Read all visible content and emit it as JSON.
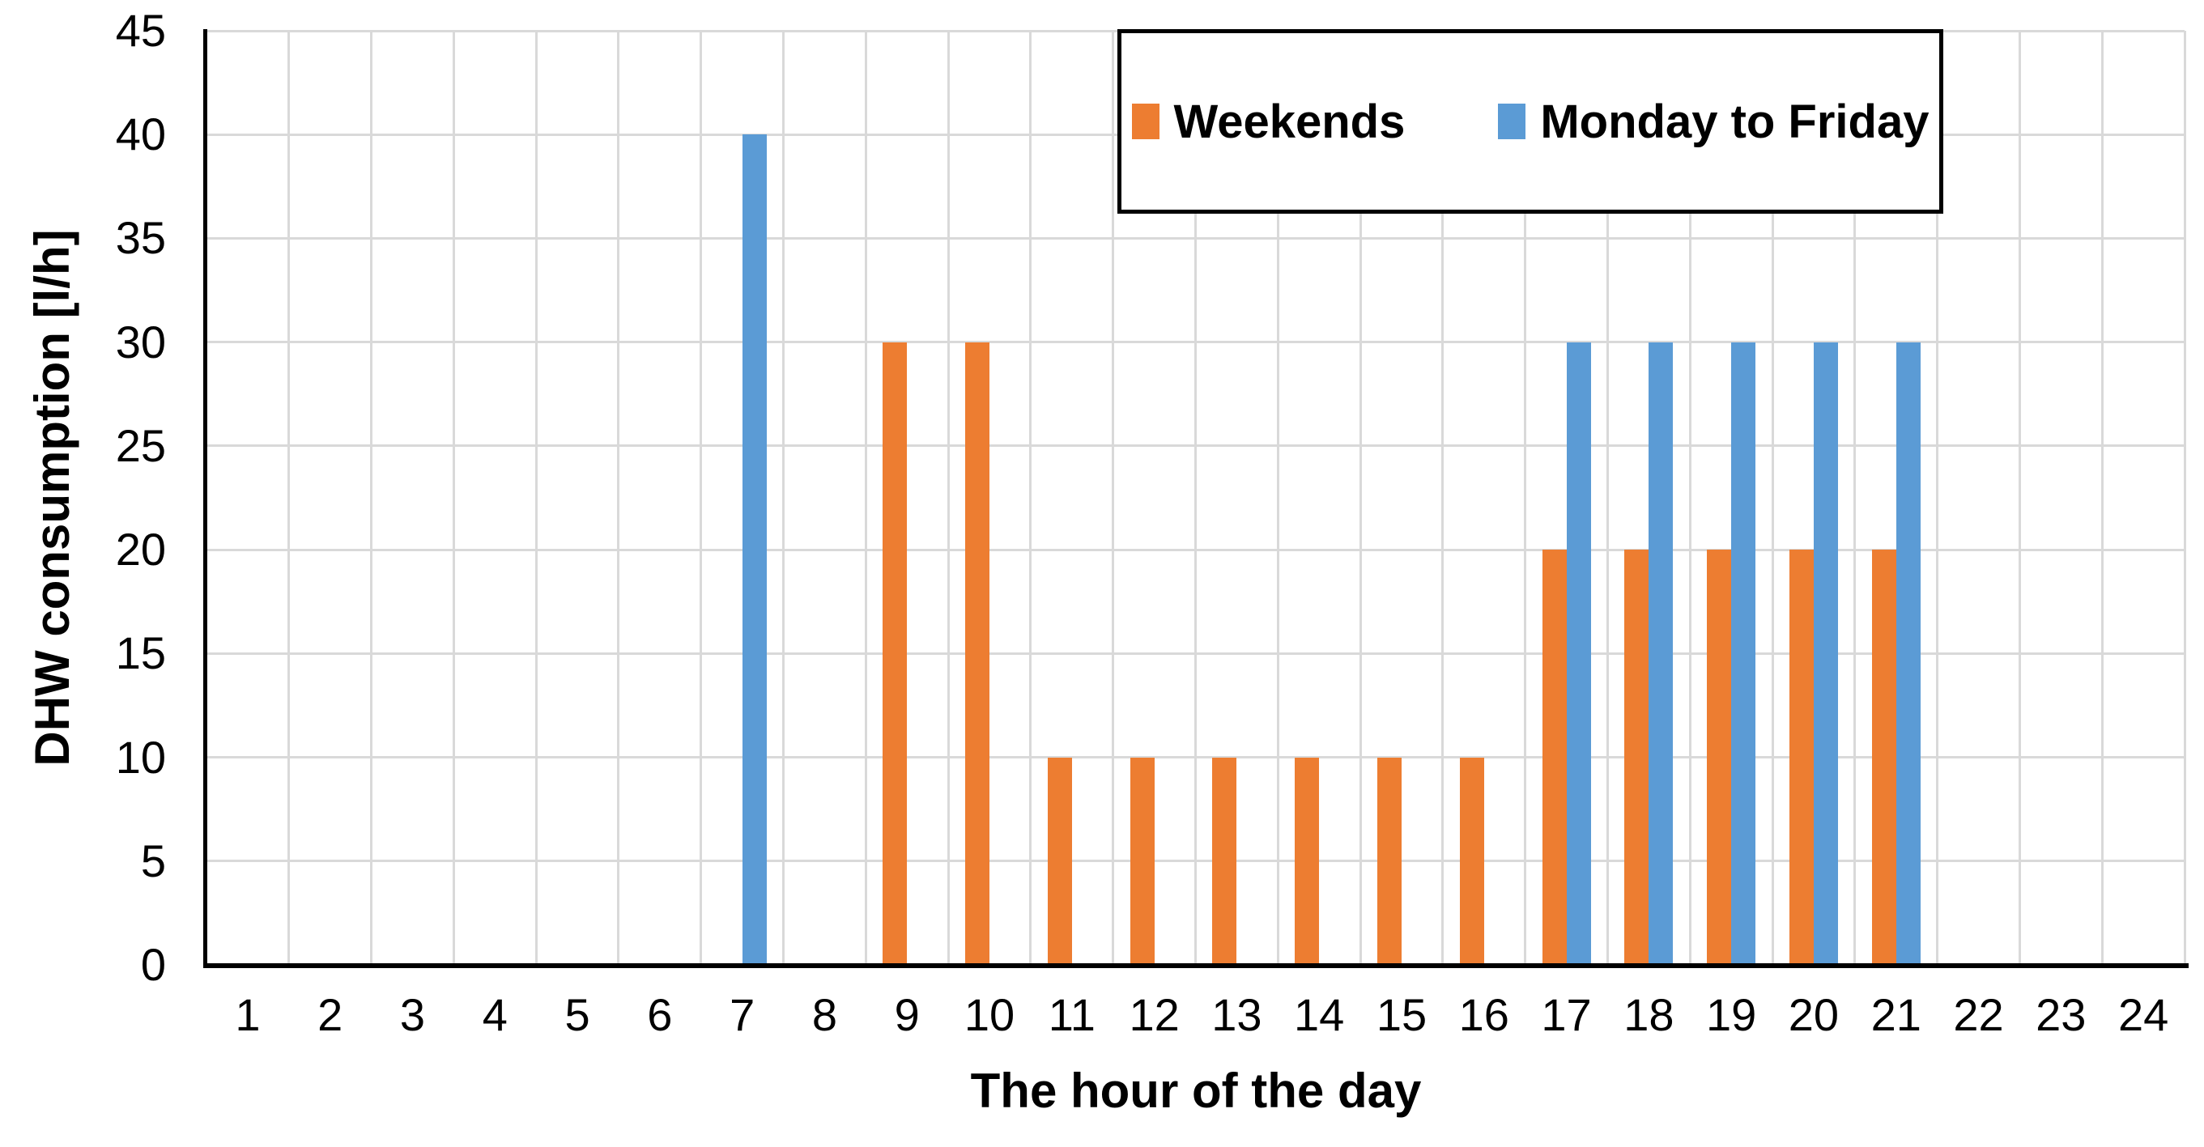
{
  "chart_data": {
    "type": "bar",
    "title": "",
    "xlabel": "The hour of the day",
    "ylabel": "DHW consumption [l/h]",
    "categories": [
      1,
      2,
      3,
      4,
      5,
      6,
      7,
      8,
      9,
      10,
      11,
      12,
      13,
      14,
      15,
      16,
      17,
      18,
      19,
      20,
      21,
      22,
      23,
      24
    ],
    "series": [
      {
        "name": "Weekends",
        "color": "#ED7D31",
        "values": [
          0,
          0,
          0,
          0,
          0,
          0,
          0,
          0,
          30,
          30,
          10,
          10,
          10,
          10,
          10,
          10,
          20,
          20,
          20,
          20,
          20,
          0,
          0,
          0
        ]
      },
      {
        "name": "Monday to Friday",
        "color": "#5B9BD5",
        "values": [
          0,
          0,
          0,
          0,
          0,
          0,
          40,
          0,
          0,
          0,
          0,
          0,
          0,
          0,
          0,
          0,
          30,
          30,
          30,
          30,
          30,
          0,
          0,
          0
        ]
      }
    ],
    "ylim": [
      0,
      45
    ],
    "ytick_step": 5,
    "grid": true,
    "gridline_color": "#D9D9D9",
    "axis_color": "#000000",
    "legend_position": "top-right"
  }
}
